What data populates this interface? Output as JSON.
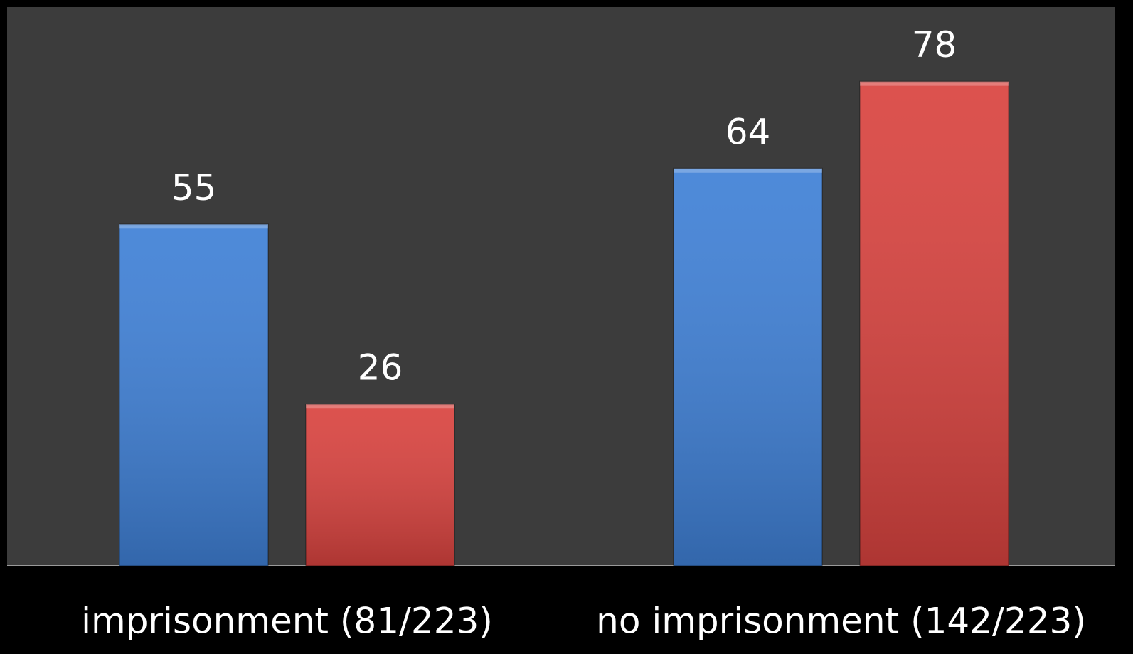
{
  "chart_data": {
    "type": "bar",
    "categories": [
      "imprisonment (81/223)",
      "no imprisonment (142/223)"
    ],
    "series": [
      {
        "color": "#3f80d6",
        "values": [
          55,
          64
        ]
      },
      {
        "color": "#d9433f",
        "values": [
          26,
          78
        ]
      }
    ],
    "ylim": [
      0,
      90
    ]
  }
}
